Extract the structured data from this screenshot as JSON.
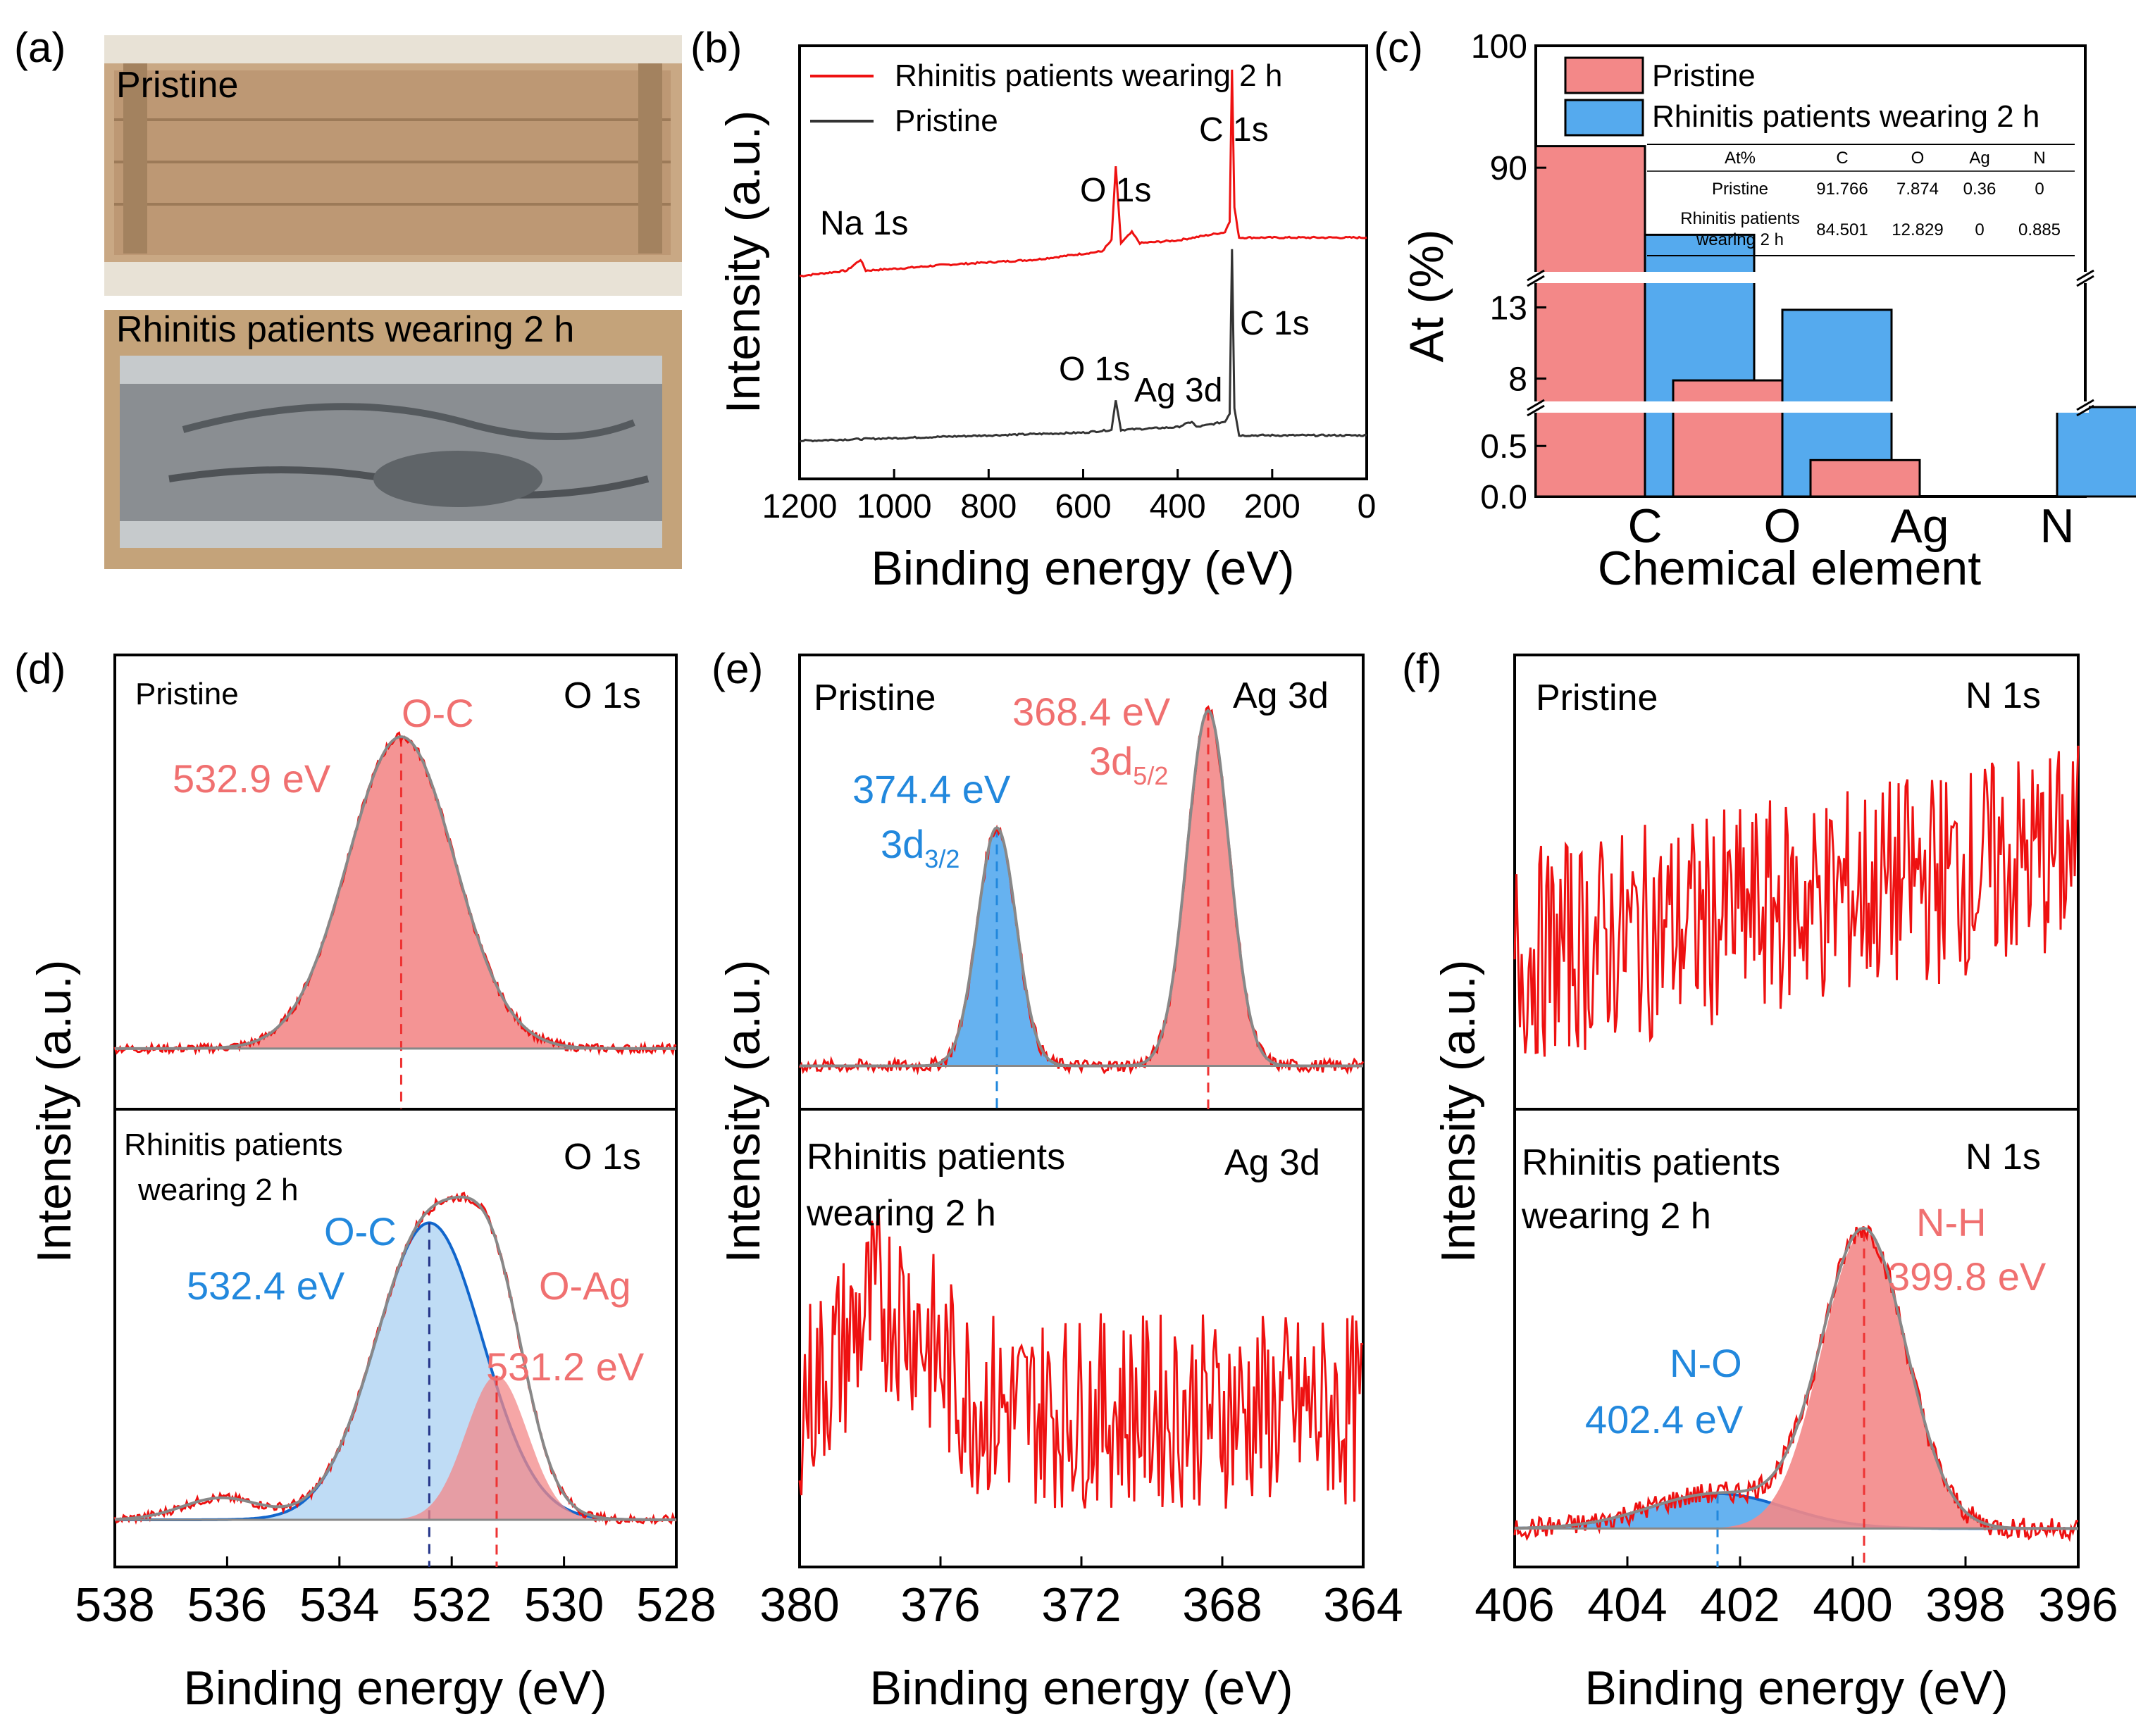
{
  "colors": {
    "red_line": "#ee1111",
    "dark_line": "#333333",
    "pink": "#f38888",
    "pink_label": "#f07070",
    "blue": "#55aaee",
    "blue_label": "#2288dd",
    "light_blue": "#b8d8f4",
    "mauve": "#cc8899",
    "gray": "#888888",
    "navy": "#223388"
  },
  "panels": {
    "a": "(a)",
    "b": "(b)",
    "c": "(c)",
    "d": "(d)",
    "e": "(e)",
    "f": "(f)"
  },
  "photo_a": {
    "top_label": "Pristine",
    "bottom_label": "Rhinitis patients wearing 2 h",
    "top_icon": "brown-mask-photo-icon",
    "bottom_icon": "gray-mask-photo-icon"
  },
  "chart_data": [
    {
      "id": "b",
      "type": "line",
      "xlabel": "Binding energy (eV)",
      "ylabel": "Intensity (a.u.)",
      "xlim": [
        1200,
        0
      ],
      "xticks": [
        "1200",
        "1000",
        "800",
        "600",
        "400",
        "200",
        "0"
      ],
      "legend": [
        "Rhinitis patients wearing 2 h",
        "Pristine"
      ],
      "series": [
        {
          "name": "Rhinitis patients wearing 2 h",
          "color": "red",
          "baseline": 0.7,
          "points": [
            [
              1200,
              0.7
            ],
            [
              1100,
              0.72
            ],
            [
              1071,
              0.76
            ],
            [
              1060,
              0.72
            ],
            [
              970,
              0.73
            ],
            [
              900,
              0.74
            ],
            [
              700,
              0.76
            ],
            [
              560,
              0.79
            ],
            [
              540,
              0.83
            ],
            [
              531,
              1.1
            ],
            [
              520,
              0.82
            ],
            [
              497,
              0.86
            ],
            [
              480,
              0.82
            ],
            [
              400,
              0.83
            ],
            [
              300,
              0.86
            ],
            [
              290,
              0.9
            ],
            [
              285,
              1.45
            ],
            [
              280,
              0.95
            ],
            [
              270,
              0.84
            ],
            [
              200,
              0.84
            ],
            [
              100,
              0.84
            ],
            [
              0,
              0.84
            ]
          ]
        },
        {
          "name": "Pristine",
          "color": "dark",
          "baseline": 0.1,
          "points": [
            [
              1200,
              0.1
            ],
            [
              1000,
              0.11
            ],
            [
              800,
              0.12
            ],
            [
              600,
              0.13
            ],
            [
              540,
              0.14
            ],
            [
              531,
              0.25
            ],
            [
              520,
              0.14
            ],
            [
              400,
              0.15
            ],
            [
              370,
              0.17
            ],
            [
              360,
              0.15
            ],
            [
              300,
              0.17
            ],
            [
              290,
              0.2
            ],
            [
              285,
              0.8
            ],
            [
              280,
              0.22
            ],
            [
              270,
              0.12
            ],
            [
              200,
              0.12
            ],
            [
              100,
              0.12
            ],
            [
              0,
              0.12
            ]
          ]
        }
      ],
      "annotations": {
        "red_na": "Na 1s",
        "red_o": "O 1s",
        "red_c": "C 1s",
        "dark_o": "O 1s",
        "dark_ag": "Ag 3d",
        "dark_c": "C 1s"
      }
    },
    {
      "id": "c",
      "type": "bar",
      "xlabel": "Chemical element",
      "ylabel": "At (%)",
      "categories": [
        "C",
        "O",
        "Ag",
        "N"
      ],
      "series": [
        {
          "name": "Pristine",
          "color": "pink",
          "values": [
            91.766,
            7.874,
            0.36,
            0
          ]
        },
        {
          "name": "Rhinitis patients wearing 2 h",
          "color": "blue",
          "values": [
            84.501,
            12.829,
            0,
            0.885
          ]
        }
      ],
      "yaxis": "broken",
      "yticks": [
        "0.0",
        "0.5",
        "8",
        "13",
        "90",
        "100"
      ],
      "table": {
        "header": [
          "At%",
          "C",
          "O",
          "Ag",
          "N"
        ],
        "row1": {
          "name": "Pristine",
          "values": [
            "91.766",
            "7.874",
            "0.36",
            "0"
          ]
        },
        "row2": {
          "name_line1": "Rhinitis patients",
          "name_line2": "wearing 2 h",
          "values": [
            "84.501",
            "12.829",
            "0",
            "0.885"
          ]
        }
      }
    },
    {
      "id": "d",
      "type": "area",
      "xlabel": "Binding energy (eV)",
      "ylabel": "Intensity (a.u.)",
      "xlim": [
        538,
        528
      ],
      "xticks": [
        "538",
        "536",
        "534",
        "532",
        "530",
        "528"
      ],
      "top": {
        "label": "Pristine",
        "element": "O 1s",
        "peaks": [
          {
            "name": "O-C",
            "center": 532.9,
            "label": "532.9 eV",
            "sigma": 0.95,
            "height": 0.72,
            "color": "pink"
          }
        ],
        "base": 0.14
      },
      "bottom": {
        "label_line1": "Rhinitis patients",
        "label_line2": "wearing 2 h",
        "element": "O 1s",
        "peaks": [
          {
            "name": "O-C",
            "center": 532.4,
            "label": "532.4 eV",
            "sigma": 0.95,
            "height": 0.68,
            "color": "blue"
          },
          {
            "name": "O-Ag",
            "center": 531.2,
            "label": "531.2 eV",
            "sigma": 0.55,
            "height": 0.33,
            "color": "pink"
          },
          {
            "name": "minor",
            "center": 536.1,
            "label": "",
            "sigma": 0.7,
            "height": 0.05,
            "color": "none"
          }
        ],
        "base": 0.1
      }
    },
    {
      "id": "e",
      "type": "area",
      "xlabel": "Binding energy (eV)",
      "ylabel": "Intensity (a.u.)",
      "xlim": [
        380,
        364
      ],
      "xticks": [
        "380",
        "376",
        "372",
        "368",
        "364"
      ],
      "top": {
        "label": "Pristine",
        "element": "Ag 3d",
        "peaks": [
          {
            "name": "3d",
            "sub": "3/2",
            "center": 374.4,
            "label": "374.4 eV",
            "sigma": 0.55,
            "height": 0.55,
            "color": "blue"
          },
          {
            "name": "3d",
            "sub": "5/2",
            "center": 368.4,
            "label": "368.4 eV",
            "sigma": 0.6,
            "height": 0.82,
            "color": "pink"
          }
        ],
        "base": 0.1
      },
      "bottom": {
        "label_line1": "Rhinitis patients",
        "label_line2": "wearing 2 h",
        "element": "Ag 3d",
        "noise_level": 0.45,
        "bump_center": 377.5
      }
    },
    {
      "id": "f",
      "type": "area",
      "xlabel": "Binding energy (eV)",
      "ylabel": "Intensity (a.u.)",
      "xlim": [
        406,
        396
      ],
      "xticks": [
        "406",
        "404",
        "402",
        "400",
        "398",
        "396"
      ],
      "top": {
        "label": "Pristine",
        "element": "N 1s",
        "noise_level": 0.5
      },
      "bottom": {
        "label_line1": "Rhinitis patients",
        "label_line2": "wearing 2 h",
        "element": "N 1s",
        "peaks": [
          {
            "name": "N-O",
            "center": 402.4,
            "label": "402.4 eV",
            "sigma": 1.2,
            "height": 0.08,
            "color": "blue"
          },
          {
            "name": "N-H",
            "center": 399.8,
            "label": "399.8 eV",
            "sigma": 0.75,
            "height": 0.68,
            "color": "pink"
          }
        ],
        "base": 0.08
      }
    }
  ]
}
